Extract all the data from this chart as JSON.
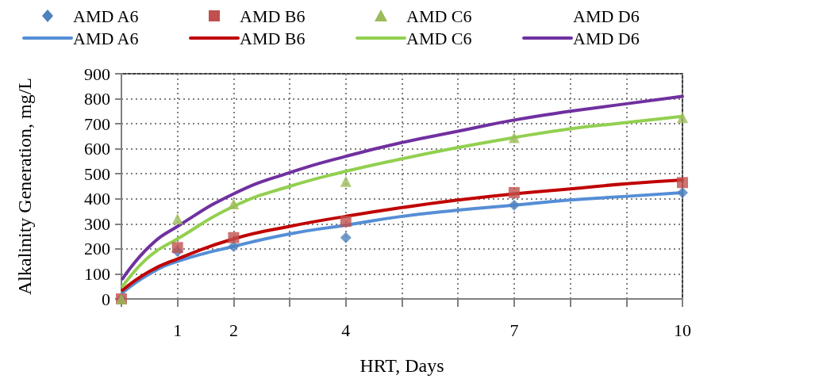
{
  "chart_data": {
    "type": "scatter",
    "xlabel": "HRT, Days",
    "ylabel": "Alkalinity Generation, mg/L",
    "xlim": [
      0,
      10
    ],
    "xticks": [
      {
        "value": 0,
        "label": null
      },
      1,
      2,
      {
        "value": 3,
        "label": null
      },
      4,
      {
        "value": 5,
        "label": null
      },
      {
        "value": 6,
        "label": null
      },
      7,
      {
        "value": 8,
        "label": null
      },
      {
        "value": 9,
        "label": null
      },
      10
    ],
    "ylim": [
      0,
      900
    ],
    "yticks": [
      0,
      100,
      200,
      300,
      400,
      500,
      600,
      700,
      800,
      900
    ],
    "grid": true,
    "legend": "top",
    "series": [
      {
        "name": "AMD A6",
        "marker": "diamond",
        "color": "#4f81bd",
        "x": [
          0,
          1,
          2,
          4,
          7,
          10
        ],
        "values": [
          0,
          190,
          210,
          245,
          375,
          425
        ]
      },
      {
        "name": "AMD B6",
        "marker": "square",
        "color": "#c0504d",
        "x": [
          0,
          1,
          2,
          4,
          7,
          10
        ],
        "values": [
          0,
          205,
          245,
          310,
          425,
          465
        ]
      },
      {
        "name": "AMD C6",
        "marker": "triangle",
        "color": "#9bbb59",
        "x": [
          0,
          1,
          2,
          4,
          7,
          10
        ],
        "values": [
          0,
          320,
          380,
          470,
          645,
          725
        ]
      },
      {
        "name": "AMD D6",
        "marker": "none"
      },
      {
        "name": "AMD A6",
        "type": "line",
        "marker": "none",
        "line_style": "solid",
        "color": "#558ed5",
        "x": [
          0.02,
          0.5,
          1,
          2,
          3,
          4,
          5,
          6,
          7,
          8,
          9,
          10
        ],
        "values": [
          25,
          100,
          150,
          210,
          260,
          295,
          330,
          355,
          375,
          395,
          410,
          425
        ]
      },
      {
        "name": "AMD B6",
        "type": "line",
        "marker": "none",
        "line_style": "solid",
        "color": "#c00000",
        "x": [
          0.02,
          0.5,
          1,
          2,
          3,
          4,
          5,
          6,
          7,
          8,
          9,
          10
        ],
        "values": [
          35,
          110,
          160,
          240,
          290,
          330,
          365,
          395,
          420,
          440,
          460,
          475
        ]
      },
      {
        "name": "AMD C6",
        "type": "line",
        "marker": "none",
        "line_style": "solid",
        "color": "#92d050",
        "x": [
          0.02,
          0.5,
          1,
          2,
          3,
          4,
          5,
          6,
          7,
          8,
          9,
          10
        ],
        "values": [
          50,
          170,
          240,
          370,
          450,
          510,
          560,
          605,
          645,
          680,
          705,
          730
        ]
      },
      {
        "name": "AMD D6",
        "type": "line",
        "marker": "none",
        "line_style": "solid",
        "color": "#7030a0",
        "x": [
          0.02,
          0.5,
          1,
          2,
          3,
          4,
          5,
          6,
          7,
          8,
          9,
          10
        ],
        "values": [
          80,
          210,
          290,
          420,
          505,
          570,
          625,
          670,
          715,
          750,
          780,
          810
        ]
      }
    ]
  }
}
